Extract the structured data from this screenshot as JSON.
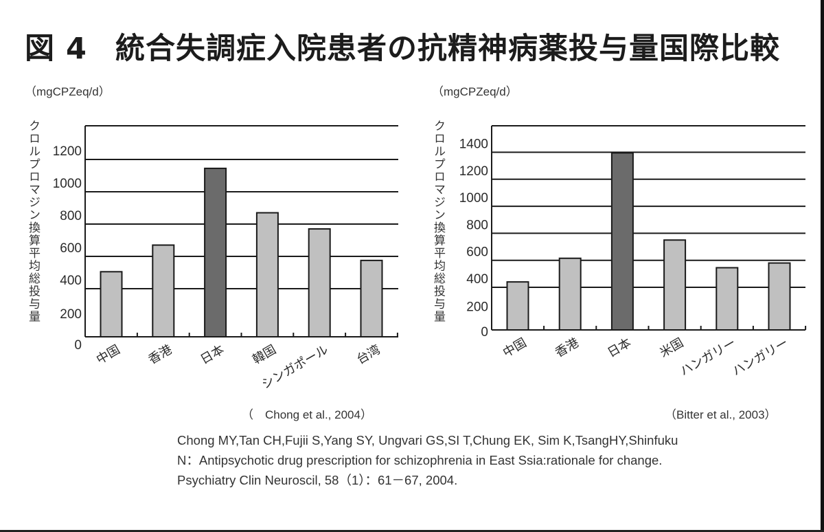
{
  "figure": {
    "number": "図 4",
    "title": "統合失調症入院患者の抗精神病薬投与量国際比較"
  },
  "chart_data": [
    {
      "type": "bar",
      "title": "",
      "unit": "（mgCPZeq/d）",
      "xlabel": "",
      "ylabel": "クロルプロマジン換算平均総投与量",
      "categories": [
        "中国",
        "香港",
        "日本",
        "韓国",
        "シンガポール",
        "台湾"
      ],
      "values": [
        505,
        670,
        1145,
        870,
        770,
        575
      ],
      "highlight_category": "日本",
      "yticks": [
        0,
        200,
        400,
        600,
        800,
        1000,
        1200
      ],
      "ylim": [
        0,
        1400
      ],
      "grid": true,
      "legend": null,
      "source": "Chong et al., 2004",
      "colors": {
        "bar": "#c0c0c0",
        "highlight": "#6b6b6b",
        "outline": "#1a1a1a"
      }
    },
    {
      "type": "bar",
      "title": "",
      "unit": "（mgCPZeq/d）",
      "xlabel": "",
      "ylabel": "クロルプロマジン換算平均総投与量",
      "categories": [
        "中国",
        "香港",
        "日本",
        "米国",
        "ハンガリー",
        "ハンガリー"
      ],
      "values": [
        440,
        615,
        1395,
        750,
        545,
        580
      ],
      "highlight_category": "日本",
      "yticks": [
        0,
        200,
        400,
        600,
        800,
        1000,
        1200,
        1400
      ],
      "ylim": [
        0,
        1500
      ],
      "grid": true,
      "legend": null,
      "source": "Bitter et al., 2003",
      "colors": {
        "bar": "#c0c0c0",
        "highlight": "#6b6b6b",
        "outline": "#1a1a1a"
      }
    }
  ],
  "left": {
    "unit": "（mgCPZeq/d）",
    "ylabel": "クロルプロマジン換算平均総投与量",
    "citation": "（　Chong et al., 2004）"
  },
  "right": {
    "unit": "（mgCPZeq/d）",
    "ylabel": "クロルプロマジン換算平均総投与量",
    "citation": "（Bitter et al., 2003）"
  },
  "reference": {
    "line1": "Chong MY,Tan CH,Fujii S,Yang SY, Ungvari GS,SI T,Chung EK, Sim K,TsangHY,Shinfuku",
    "line2": "N：Antipsychotic drug prescription for schizophrenia in East Ssia:rationale for change.",
    "line3": "Psychiatry Clin Neuroscil, 58（1）：61－67, 2004."
  }
}
